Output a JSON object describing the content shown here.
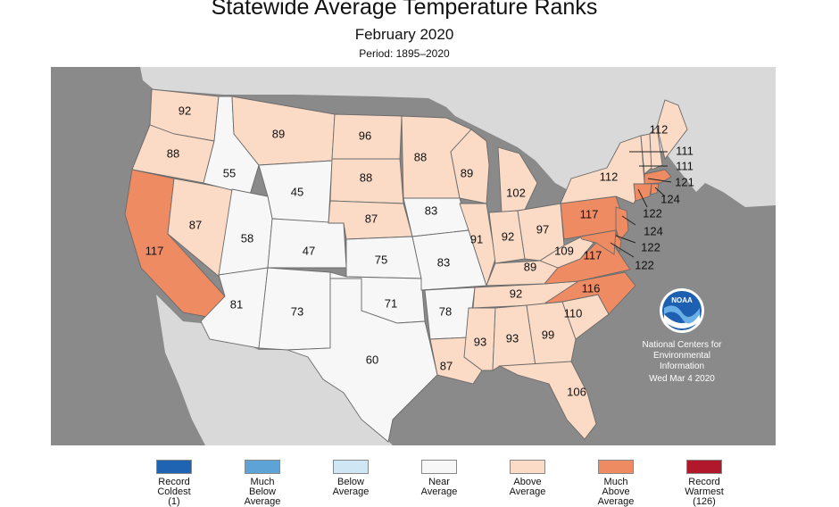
{
  "header": {
    "title": "Statewide Average Temperature Ranks",
    "subtitle": "February 2020",
    "period": "Period: 1895–2020"
  },
  "colors": {
    "ocean": "#8a8a8a",
    "land_outside": "#d9d9d9",
    "near_average": "#f7f7f7",
    "above_average": "#fbdac6",
    "much_above_average": "#ee8b63"
  },
  "ranks": {
    "WA": "92",
    "OR": "88",
    "CA": "117",
    "NV": "87",
    "ID": "55",
    "MT": "89",
    "WY": "45",
    "UT": "58",
    "AZ": "81",
    "CO": "47",
    "NM": "73",
    "ND": "96",
    "SD": "88",
    "NE": "87",
    "KS": "75",
    "OK": "71",
    "TX": "60",
    "MN": "88",
    "IA": "83",
    "MO": "83",
    "AR": "78",
    "LA": "87",
    "WI": "89",
    "IL": "91",
    "MI": "102",
    "IN": "92",
    "OH": "97",
    "KY": "89",
    "TN": "92",
    "MS": "93",
    "AL": "93",
    "GA": "99",
    "FL": "106",
    "SC": "110",
    "NC": "116",
    "VA": "117",
    "WV": "109",
    "PA": "117",
    "NY": "112",
    "ME": "112",
    "VT": "111",
    "NH": "111",
    "MA": "121",
    "RI": "124",
    "CT": "122",
    "NJ": "124",
    "DE": "122",
    "MD": "122"
  },
  "credit": {
    "logo_text": "NOAA",
    "line1": "National Centers for",
    "line2": "Environmental",
    "line3": "Information",
    "date": "Wed Mar  4 2020"
  },
  "legend": [
    {
      "line1": "Record",
      "line2": "Coldest",
      "line3": "(1)",
      "color": "#1f64b3"
    },
    {
      "line1": "Much",
      "line2": "Below",
      "line3": "Average",
      "color": "#5da3d6"
    },
    {
      "line1": "Below",
      "line2": "Average",
      "line3": "",
      "color": "#cfe6f5"
    },
    {
      "line1": "Near",
      "line2": "Average",
      "line3": "",
      "color": "#f7f7f7"
    },
    {
      "line1": "Above",
      "line2": "Average",
      "line3": "",
      "color": "#fbdac6"
    },
    {
      "line1": "Much",
      "line2": "Above",
      "line3": "Average",
      "color": "#ee8b63"
    },
    {
      "line1": "Record",
      "line2": "Warmest",
      "line3": "(126)",
      "color": "#b2182b"
    }
  ]
}
